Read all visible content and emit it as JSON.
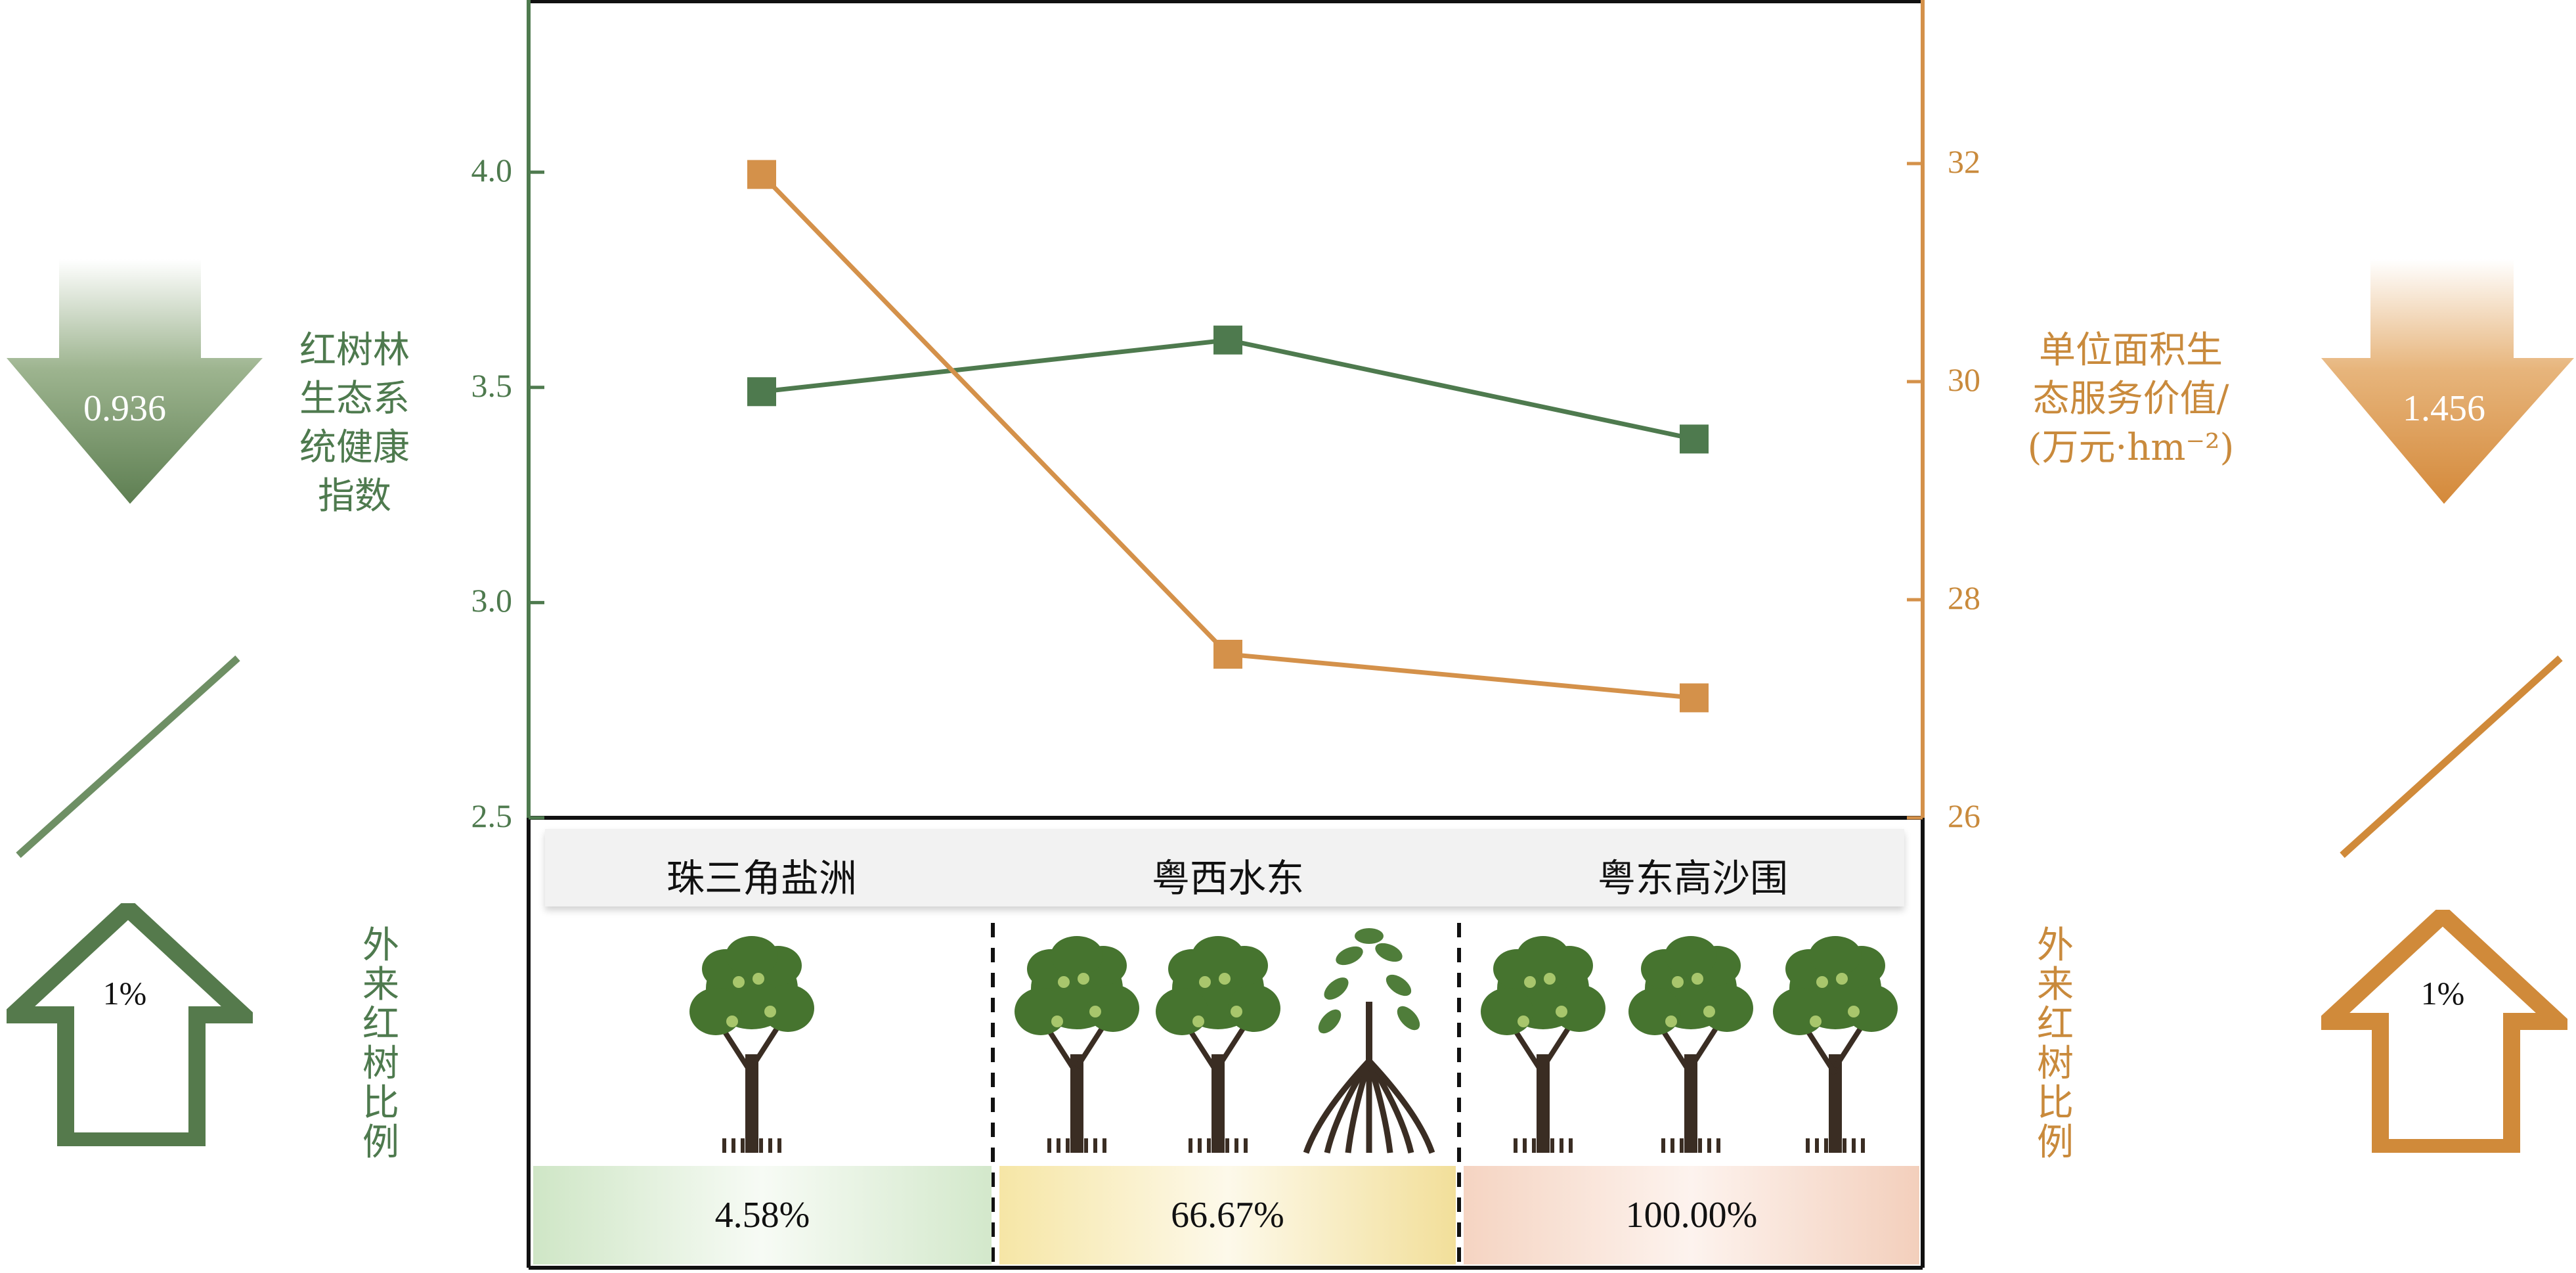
{
  "chart_data": {
    "type": "line",
    "categories": [
      "珠三角盐洲",
      "粤西水东",
      "粤东高沙围"
    ],
    "series": [
      {
        "name": "红树林生态系统健康指数",
        "axis": "left",
        "color": "#4e7a4e",
        "values": [
          3.49,
          3.61,
          3.38
        ]
      },
      {
        "name": "单位面积生态服务价值/(万元·hm⁻²)",
        "axis": "right",
        "color": "#d4914a",
        "values": [
          31.9,
          27.5,
          27.1
        ]
      }
    ],
    "left_axis": {
      "ylim": [
        2.5,
        4.4
      ],
      "ticks": [
        "2.5",
        "3.0",
        "3.5",
        "4.0"
      ]
    },
    "right_axis": {
      "ylim": [
        26,
        33.5
      ],
      "ticks": [
        "26",
        "28",
        "30",
        "32"
      ]
    },
    "exotic_mangrove_ratio": [
      "4.58%",
      "66.67%",
      "100.00%"
    ],
    "tree_icons": [
      [
        "mangrove-tree-icon"
      ],
      [
        "mangrove-tree-icon",
        "mangrove-tree-icon",
        "exotic-mangrove-tree-icon"
      ],
      [
        "mangrove-tree-icon",
        "mangrove-tree-icon",
        "mangrove-tree-icon"
      ]
    ]
  },
  "left_panel": {
    "y_label_lines": [
      "红树林",
      "生态系",
      "统健康",
      "指数"
    ],
    "arrow_value": "0.936",
    "ratio_percent": "1%",
    "ratio_label_lines": [
      "外",
      "来",
      "红",
      "树",
      "比",
      "例"
    ],
    "color": "#5a7e52"
  },
  "right_panel": {
    "y_label_lines": [
      "单位面积生",
      "态服务价值/",
      "(万元·hm⁻²)"
    ],
    "arrow_value": "1.456",
    "ratio_percent": "1%",
    "ratio_label_lines": [
      "外",
      "来",
      "红",
      "树",
      "比",
      "例"
    ],
    "color": "#d08a3a"
  }
}
